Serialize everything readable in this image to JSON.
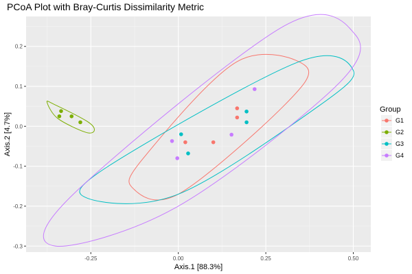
{
  "chart_data": {
    "type": "scatter",
    "title": "PCoA Plot with Bray-Curtis Dissimilarity Metric",
    "xlabel": "Axis.1   [88.3%]",
    "ylabel": "Axis.2   [4.7%]",
    "xlim": [
      -0.435,
      0.55
    ],
    "ylim": [
      -0.315,
      0.275
    ],
    "x_ticks": [
      -0.25,
      0.0,
      0.25,
      0.5
    ],
    "x_tick_labels": [
      "-0.25",
      "0.00",
      "0.25",
      "0.50"
    ],
    "y_ticks": [
      0.2,
      0.1,
      0.0,
      -0.1,
      -0.2,
      -0.3
    ],
    "y_tick_labels": [
      "0.2",
      "0.1",
      "0.0",
      "-0.1",
      "-0.2",
      "-0.3"
    ],
    "grid": true,
    "legend": {
      "title": "Group",
      "position": "right"
    },
    "series": [
      {
        "name": "G1",
        "color": "#F8766D",
        "points": [
          [
            0.02,
            -0.04
          ],
          [
            0.1,
            -0.04
          ],
          [
            0.168,
            0.045
          ],
          [
            0.168,
            0.022
          ]
        ],
        "ellipse": [
          [
            0.168,
            0.162
          ],
          [
            0.365,
            0.15
          ],
          [
            0.3,
            0.05
          ],
          [
            0.0,
            -0.17
          ],
          [
            -0.13,
            -0.155
          ],
          [
            -0.1,
            -0.08
          ]
        ]
      },
      {
        "name": "G2",
        "color": "#7CAE00",
        "points": [
          [
            -0.335,
            0.038
          ],
          [
            -0.305,
            0.025
          ],
          [
            -0.34,
            0.025
          ],
          [
            -0.28,
            0.01
          ]
        ],
        "ellipse": [
          [
            -0.375,
            0.06
          ],
          [
            -0.355,
            0.055
          ],
          [
            -0.26,
            0.012
          ],
          [
            -0.24,
            -0.01
          ],
          [
            -0.265,
            -0.015
          ],
          [
            -0.345,
            0.02
          ]
        ]
      },
      {
        "name": "G3",
        "color": "#00BFC4",
        "points": [
          [
            0.008,
            -0.02
          ],
          [
            0.028,
            -0.068
          ],
          [
            0.195,
            0.037
          ],
          [
            0.195,
            0.01
          ]
        ],
        "ellipse": [
          [
            0.34,
            0.16
          ],
          [
            0.5,
            0.14
          ],
          [
            0.4,
            0.05
          ],
          [
            0.0,
            -0.17
          ],
          [
            -0.26,
            -0.18
          ],
          [
            -0.2,
            -0.1
          ]
        ]
      },
      {
        "name": "G4",
        "color": "#C77CFF",
        "points": [
          [
            -0.018,
            -0.037
          ],
          [
            0.152,
            -0.021
          ],
          [
            0.218,
            0.093
          ],
          [
            -0.003,
            -0.08
          ]
        ],
        "ellipse": [
          [
            0.3,
            0.25
          ],
          [
            0.505,
            0.23
          ],
          [
            0.45,
            0.1
          ],
          [
            0.0,
            -0.2
          ],
          [
            -0.35,
            -0.3
          ],
          [
            -0.3,
            -0.17
          ]
        ]
      }
    ]
  }
}
